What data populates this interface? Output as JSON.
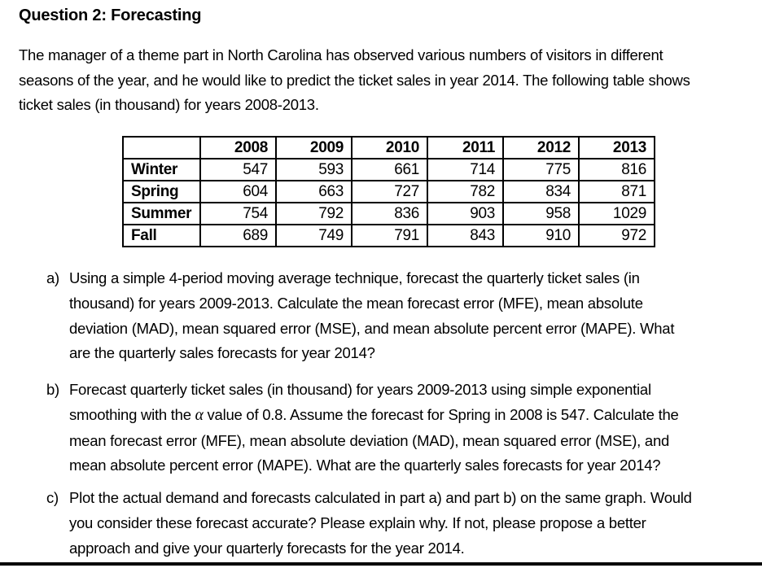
{
  "title": "Question 2: Forecasting",
  "intro": "The manager of a theme part in North Carolina has observed various numbers of visitors in different\nseasons of the year, and he would like to predict the ticket sales in year 2014. The following table shows\nticket sales (in thousand) for years 2008-2013.",
  "table": {
    "corner": "",
    "years": [
      "2008",
      "2009",
      "2010",
      "2011",
      "2012",
      "2013"
    ],
    "rows": [
      {
        "label": "Winter",
        "values": [
          547,
          593,
          661,
          714,
          775,
          816
        ]
      },
      {
        "label": "Spring",
        "values": [
          604,
          663,
          727,
          782,
          834,
          871
        ]
      },
      {
        "label": "Summer",
        "values": [
          754,
          792,
          836,
          903,
          958,
          1029
        ]
      },
      {
        "label": "Fall",
        "values": [
          689,
          749,
          791,
          843,
          910,
          972
        ]
      }
    ]
  },
  "items": {
    "a": {
      "marker": "a)",
      "text": "Using a simple 4-period moving average technique, forecast the quarterly ticket sales (in\nthousand) for years 2009-2013. Calculate the mean forecast error (MFE), mean absolute\ndeviation (MAD), mean squared error (MSE), and mean absolute percent error (MAPE). What\nare the quarterly sales forecasts for year 2014?"
    },
    "b": {
      "marker": "b)",
      "text_before_alpha": "Forecast quarterly ticket sales (in thousand) for years 2009-2013 using simple exponential\nsmoothing with the ",
      "alpha": "α",
      "text_after_alpha": " value of 0.8. Assume the forecast for Spring in 2008 is 547. Calculate the\nmean forecast error (MFE), mean absolute deviation (MAD), mean squared error (MSE), and\nmean absolute percent error (MAPE). What are the quarterly sales forecasts for year 2014?"
    },
    "c": {
      "marker": "c)",
      "text": "Plot the actual demand and forecasts calculated in part a) and part b) on the same graph. Would\nyou consider these forecast accurate? Please explain why. If not, please propose a better\napproach and give your quarterly forecasts for the year 2014."
    }
  }
}
